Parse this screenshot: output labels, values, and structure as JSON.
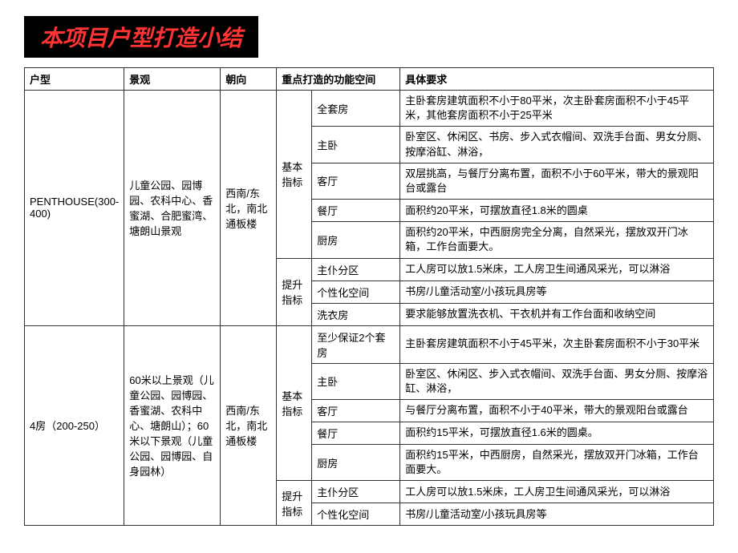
{
  "title": "本项目户型打造小结",
  "headers": {
    "unit": "户型",
    "view": "景观",
    "orient": "朝向",
    "space_group": "重点打造的功能空间",
    "req": "具体要求"
  },
  "groups": [
    {
      "unit": "PENTHOUSE(300-400)",
      "view": "儿童公园、园博园、农科中心、香蜜湖、合肥蜜湾、塘朗山景观",
      "orient": "西南/东北，南北通板楼",
      "categories": [
        {
          "cat": "基本指标",
          "rows": [
            {
              "space": "全套房",
              "req": "主卧套房建筑面积不小于80平米，次主卧套房面积不小于45平米，其他套房面积不小于25平米"
            },
            {
              "space": "主卧",
              "req": "卧室区、休闲区、书房、步入式衣帽间、双洗手台面、男女分厕、按摩浴缸、淋浴，"
            },
            {
              "space": "客厅",
              "req": "双层挑高，与餐厅分离布置，面积不小于60平米，带大的景观阳台或露台"
            },
            {
              "space": "餐厅",
              "req": "面积约20平米，可摆放直径1.8米的圆桌"
            },
            {
              "space": "厨房",
              "req": "面积约20平米，中西厨房完全分离，自然采光，摆放双开门冰箱，工作台面要大。"
            }
          ]
        },
        {
          "cat": "提升指标",
          "rows": [
            {
              "space": "主仆分区",
              "req": "工人房可以放1.5米床，工人房卫生间通风采光，可以淋浴"
            },
            {
              "space": "个性化空间",
              "req": "书房/儿童活动室/小孩玩具房等"
            },
            {
              "space": "洗衣房",
              "req": "要求能够放置洗衣机、干衣机并有工作台面和收纳空间"
            }
          ]
        }
      ]
    },
    {
      "unit": "4房（200-250）",
      "view": "60米以上景观（儿童公园、园博园、香蜜湖、农科中心、塘朗山）；60米以下景观（儿童公园、园博园、自身园林）",
      "orient": "西南/东北，南北通板楼",
      "categories": [
        {
          "cat": "基本指标",
          "rows": [
            {
              "space": "至少保证2个套房",
              "req": "主卧套房建筑面积不小于45平米，次主卧套房面积不小于30平米"
            },
            {
              "space": "主卧",
              "req": "卧室区、休闲区、步入式衣帽间、双洗手台面、男女分厕、按摩浴缸、淋浴，"
            },
            {
              "space": "客厅",
              "req": "与餐厅分离布置，面积不小于40平米，带大的景观阳台或露台"
            },
            {
              "space": "餐厅",
              "req": "面积约15平米，可摆放直径1.6米的圆桌。"
            },
            {
              "space": "厨房",
              "req": "面积约15平米，中西厨房，自然采光，摆放双开门冰箱，工作台面要大。"
            }
          ]
        },
        {
          "cat": "提升指标",
          "rows": [
            {
              "space": "主仆分区",
              "req": "工人房可以放1.5米床，工人房卫生间通风采光，可以淋浴"
            },
            {
              "space": "个性化空间",
              "req": "书房/儿童活动室/小孩玩具房等"
            }
          ]
        }
      ]
    }
  ]
}
